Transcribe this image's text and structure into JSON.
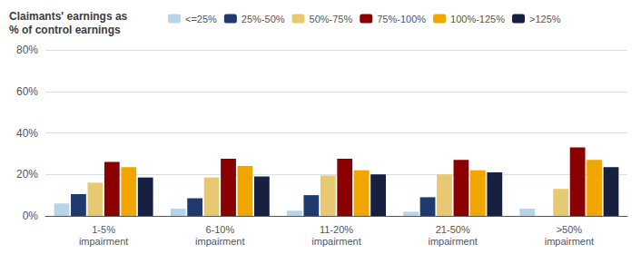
{
  "chart_data": {
    "type": "bar",
    "title": "Claimants' earnings as\n% of control earnings",
    "categories": [
      "1-5%\nimpairment",
      "6-10%\nimpairment",
      "11-20%\nimpairment",
      "21-50%\nimpairment",
      ">50%\nimpairment"
    ],
    "series": [
      {
        "name": "<=25%",
        "color": "#b8d4e8",
        "values": [
          6,
          3.5,
          2.5,
          2,
          3.5
        ]
      },
      {
        "name": "25%-50%",
        "color": "#1e3a6e",
        "values": [
          10.5,
          8.5,
          10,
          9,
          0
        ]
      },
      {
        "name": "50%-75%",
        "color": "#e8c870",
        "values": [
          16,
          18.5,
          19.5,
          20,
          13
        ]
      },
      {
        "name": "75%-100%",
        "color": "#8b0000",
        "values": [
          26,
          27.5,
          27.5,
          27,
          33
        ]
      },
      {
        "name": "100%-125%",
        "color": "#f0a500",
        "values": [
          23.5,
          24,
          22,
          22,
          27
        ]
      },
      {
        "name": ">125%",
        "color": "#162040",
        "values": [
          18.5,
          19,
          20,
          21,
          23.5
        ]
      }
    ],
    "ylim": [
      0,
      80
    ],
    "yticks": [
      {
        "value": 0,
        "label": "0%"
      },
      {
        "value": 20,
        "label": "20%"
      },
      {
        "value": 40,
        "label": "40%"
      },
      {
        "value": 60,
        "label": "60%"
      },
      {
        "value": 80,
        "label": "80%"
      }
    ],
    "grid": true,
    "legend": "top"
  }
}
